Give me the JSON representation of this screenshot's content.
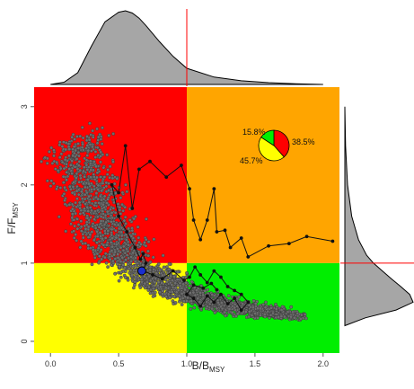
{
  "chart_data": {
    "type": "scatter",
    "title": "",
    "xlabel_main": "B/B",
    "xlabel_sub": "MSY",
    "ylabel_main": "F/F",
    "ylabel_sub": "MSY",
    "xlim": [
      -0.12,
      2.12
    ],
    "ylim": [
      -0.15,
      3.25
    ],
    "x_ticks": [
      "0.0",
      "0.5",
      "1.0",
      "1.5",
      "2.0"
    ],
    "x_tick_values": [
      0,
      0.5,
      1,
      1.5,
      2
    ],
    "y_ticks": [
      "0",
      "1",
      "2",
      "3"
    ],
    "y_tick_values": [
      0,
      1,
      2,
      3
    ],
    "reference_lines": {
      "x": 1.0,
      "y": 1.0
    },
    "quadrants": [
      {
        "name": "overfishing-overfished",
        "x": [
          -0.12,
          1.0
        ],
        "y": [
          1.0,
          3.25
        ],
        "color": "#ff0000"
      },
      {
        "name": "overfishing-not-overfished",
        "x": [
          1.0,
          2.12
        ],
        "y": [
          1.0,
          3.25
        ],
        "color": "#ffa500"
      },
      {
        "name": "overfished-not-overfishing",
        "x": [
          -0.12,
          1.0
        ],
        "y": [
          -0.15,
          1.0
        ],
        "color": "#ffff00"
      },
      {
        "name": "healthy",
        "x": [
          1.0,
          2.12
        ],
        "y": [
          -0.15,
          1.0
        ],
        "color": "#00ee00"
      }
    ],
    "cloud": {
      "color": "#6e6e6e",
      "edge_color": "#2a2a2a",
      "center_curve": [
        [
          0.18,
          2.55
        ],
        [
          0.25,
          2.05
        ],
        [
          0.35,
          1.6
        ],
        [
          0.5,
          1.2
        ],
        [
          0.7,
          0.85
        ],
        [
          0.9,
          0.68
        ],
        [
          1.1,
          0.55
        ],
        [
          1.3,
          0.45
        ],
        [
          1.5,
          0.4
        ],
        [
          1.8,
          0.34
        ]
      ],
      "half_width": [
        0.35,
        0.33,
        0.3,
        0.27,
        0.22,
        0.18,
        0.15,
        0.12,
        0.1,
        0.08
      ],
      "count": 2600
    },
    "trajectory": {
      "color": "#111111",
      "points": [
        [
          2.07,
          1.28
        ],
        [
          1.88,
          1.34
        ],
        [
          1.75,
          1.25
        ],
        [
          1.6,
          1.22
        ],
        [
          1.45,
          1.08
        ],
        [
          1.4,
          1.32
        ],
        [
          1.32,
          1.2
        ],
        [
          1.28,
          1.42
        ],
        [
          1.22,
          1.4
        ],
        [
          1.2,
          1.95
        ],
        [
          1.15,
          1.55
        ],
        [
          1.1,
          1.3
        ],
        [
          1.05,
          1.55
        ],
        [
          1.02,
          1.95
        ],
        [
          0.96,
          2.25
        ],
        [
          0.85,
          2.1
        ],
        [
          0.73,
          2.3
        ],
        [
          0.65,
          2.2
        ],
        [
          0.6,
          1.7
        ],
        [
          0.55,
          2.5
        ],
        [
          0.5,
          1.9
        ],
        [
          0.45,
          2.0
        ],
        [
          0.5,
          1.6
        ],
        [
          0.56,
          1.4
        ],
        [
          0.62,
          1.2
        ],
        [
          0.66,
          1.05
        ],
        [
          0.68,
          1.12
        ],
        [
          0.7,
          1.0
        ],
        [
          0.68,
          0.9
        ],
        [
          0.75,
          0.85
        ],
        [
          0.82,
          0.8
        ],
        [
          0.9,
          0.9
        ],
        [
          0.98,
          0.78
        ],
        [
          1.02,
          0.82
        ],
        [
          1.06,
          0.95
        ],
        [
          1.1,
          0.85
        ],
        [
          1.15,
          0.75
        ],
        [
          1.2,
          0.9
        ],
        [
          1.25,
          0.82
        ],
        [
          1.3,
          0.7
        ],
        [
          1.35,
          0.65
        ],
        [
          1.4,
          0.6
        ],
        [
          1.45,
          0.5
        ],
        [
          1.4,
          0.4
        ],
        [
          1.35,
          0.55
        ],
        [
          1.3,
          0.48
        ],
        [
          1.25,
          0.6
        ],
        [
          1.2,
          0.5
        ],
        [
          1.15,
          0.58
        ],
        [
          1.1,
          0.45
        ],
        [
          1.05,
          0.55
        ],
        [
          1.0,
          0.6
        ],
        [
          1.05,
          0.72
        ],
        [
          1.12,
          0.68
        ],
        [
          1.18,
          0.74
        ],
        [
          1.22,
          0.66
        ]
      ]
    },
    "current_point": {
      "x": 0.67,
      "y": 0.9,
      "color": "#1a2fd0"
    },
    "pie": {
      "slices": [
        {
          "label": "38.5%",
          "value": 38.5,
          "color": "#ff0000"
        },
        {
          "label": "45.7%",
          "value": 45.7,
          "color": "#ffff00"
        },
        {
          "label": "15.8%",
          "value": 15.8,
          "color": "#00ee00"
        }
      ]
    },
    "top_density": {
      "fill": "#a6a6a6",
      "x": [
        0.0,
        0.1,
        0.2,
        0.3,
        0.4,
        0.5,
        0.55,
        0.6,
        0.65,
        0.7,
        0.8,
        0.9,
        1.0,
        1.2,
        1.4,
        1.6,
        1.8,
        2.0
      ],
      "density": [
        0.0,
        0.03,
        0.16,
        0.52,
        0.85,
        0.98,
        1.0,
        0.97,
        0.9,
        0.8,
        0.58,
        0.38,
        0.22,
        0.1,
        0.05,
        0.025,
        0.01,
        0.0
      ]
    },
    "right_density": {
      "fill": "#a6a6a6",
      "y": [
        0.2,
        0.3,
        0.4,
        0.5,
        0.6,
        0.7,
        0.8,
        0.9,
        1.0,
        1.1,
        1.3,
        1.6,
        2.0,
        2.5,
        3.0
      ],
      "density": [
        0.0,
        0.3,
        0.75,
        1.0,
        0.95,
        0.82,
        0.68,
        0.55,
        0.42,
        0.32,
        0.2,
        0.1,
        0.04,
        0.01,
        0.0
      ]
    }
  }
}
